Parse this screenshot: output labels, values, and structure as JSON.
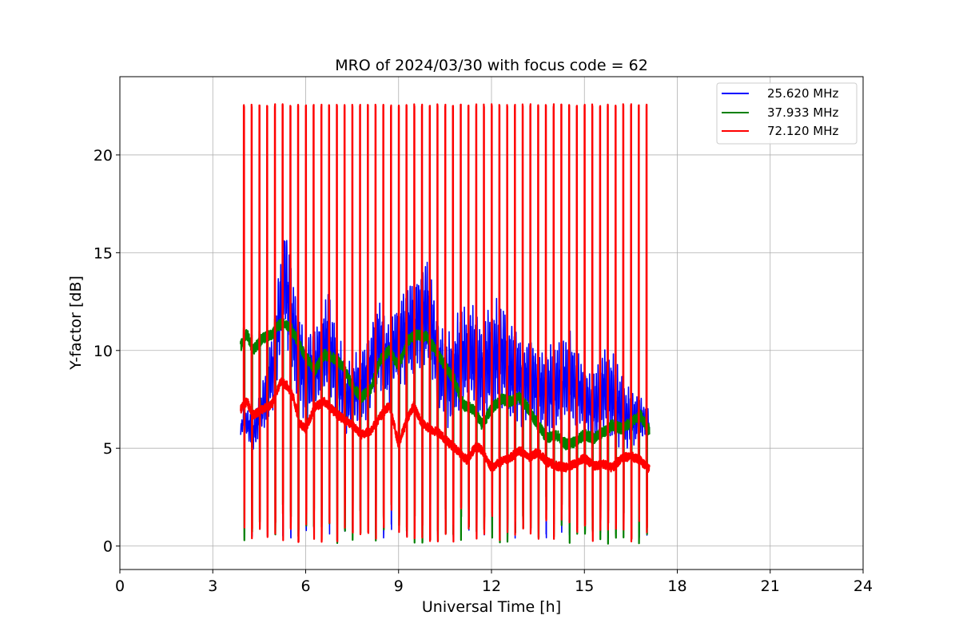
{
  "chart_data": {
    "type": "line",
    "title": "MRO of 2024/03/30 with focus code = 62",
    "xlabel": "Universal Time [h]",
    "ylabel": "Y-factor [dB]",
    "xlim": [
      0,
      24
    ],
    "ylim": [
      -1.2,
      24
    ],
    "xticks": [
      0,
      3,
      6,
      9,
      12,
      15,
      18,
      21,
      24
    ],
    "yticks": [
      0,
      5,
      10,
      15,
      20
    ],
    "grid": true,
    "legend_position": "top-right",
    "calibration_pulses": {
      "start": 4.0,
      "end": 17.0,
      "spacing_h": 0.25,
      "red_peak": 22.6,
      "blue_peak_range": [
        13.0,
        18.3
      ],
      "green_trough": 0.1
    },
    "series": [
      {
        "name": "25.620 MHz",
        "color": "#0000ff",
        "x": [
          3.9,
          4.0,
          4.3,
          4.6,
          5.0,
          5.3,
          5.6,
          6.0,
          6.3,
          6.7,
          7.0,
          7.3,
          7.6,
          8.0,
          8.3,
          8.6,
          9.0,
          9.3,
          9.6,
          10.0,
          10.3,
          10.6,
          11.0,
          11.3,
          11.6,
          12.0,
          12.3,
          12.6,
          13.0,
          13.3,
          13.6,
          14.0,
          14.3,
          14.6,
          15.0,
          15.3,
          15.6,
          16.0,
          16.3,
          16.6,
          17.0,
          17.1
        ],
        "values": [
          5.9,
          6.5,
          5.8,
          7.0,
          9.5,
          14.0,
          11.0,
          8.5,
          9.0,
          10.5,
          9.0,
          7.5,
          8.0,
          8.5,
          10.5,
          9.5,
          10.5,
          11.0,
          11.5,
          12.0,
          9.0,
          8.5,
          9.5,
          10.0,
          9.0,
          9.5,
          10.0,
          9.0,
          8.5,
          8.5,
          8.0,
          8.0,
          8.5,
          8.5,
          7.5,
          7.0,
          8.0,
          7.5,
          6.5,
          6.5,
          6.5,
          6.2
        ],
        "amplitude": [
          0.3,
          0.8,
          1.0,
          1.5,
          2.5,
          3.0,
          3.0,
          2.5,
          2.5,
          3.0,
          2.5,
          2.0,
          2.0,
          2.5,
          2.5,
          2.5,
          2.5,
          3.0,
          3.0,
          3.0,
          2.5,
          2.5,
          3.0,
          3.0,
          3.0,
          3.0,
          3.0,
          3.0,
          2.5,
          2.5,
          2.5,
          2.5,
          2.5,
          2.5,
          2.0,
          2.0,
          2.5,
          2.5,
          2.0,
          1.5,
          1.0,
          0.5
        ]
      },
      {
        "name": "37.933 MHz",
        "color": "#008000",
        "x": [
          3.9,
          4.1,
          4.3,
          4.6,
          4.9,
          5.2,
          5.5,
          5.8,
          6.0,
          6.3,
          6.6,
          6.9,
          7.2,
          7.5,
          7.8,
          8.1,
          8.4,
          8.7,
          9.0,
          9.3,
          9.6,
          9.9,
          10.2,
          10.5,
          10.8,
          11.1,
          11.4,
          11.7,
          12.0,
          12.3,
          12.6,
          12.9,
          13.2,
          13.5,
          13.8,
          14.1,
          14.4,
          14.7,
          15.0,
          15.3,
          15.6,
          15.9,
          16.2,
          16.5,
          16.8,
          17.1
        ],
        "values": [
          10.2,
          10.9,
          10.0,
          10.6,
          10.8,
          11.4,
          11.2,
          10.3,
          9.7,
          9.0,
          9.8,
          9.6,
          9.2,
          8.2,
          7.6,
          8.0,
          9.5,
          10.0,
          9.2,
          10.5,
          10.8,
          10.7,
          10.0,
          9.2,
          8.5,
          7.2,
          7.0,
          6.2,
          7.0,
          7.5,
          7.4,
          7.6,
          7.0,
          6.2,
          5.5,
          5.7,
          5.2,
          5.3,
          5.7,
          5.5,
          5.8,
          6.2,
          6.0,
          6.3,
          6.7,
          5.9
        ]
      },
      {
        "name": "72.120 MHz",
        "color": "#ff0000",
        "x": [
          3.9,
          4.1,
          4.3,
          4.6,
          4.9,
          5.2,
          5.4,
          5.6,
          5.8,
          6.0,
          6.3,
          6.6,
          6.9,
          7.2,
          7.5,
          7.8,
          8.1,
          8.4,
          8.7,
          9.0,
          9.3,
          9.5,
          9.7,
          10.0,
          10.3,
          10.6,
          10.9,
          11.2,
          11.5,
          11.7,
          12.0,
          12.3,
          12.6,
          12.9,
          13.2,
          13.5,
          13.8,
          14.1,
          14.4,
          14.7,
          15.0,
          15.3,
          15.6,
          15.9,
          16.2,
          16.5,
          16.8,
          17.1
        ],
        "values": [
          7.0,
          7.4,
          6.7,
          7.0,
          7.2,
          8.4,
          8.2,
          7.6,
          6.3,
          6.0,
          7.1,
          7.4,
          6.9,
          6.5,
          6.2,
          5.7,
          5.9,
          6.6,
          7.2,
          5.2,
          6.6,
          7.2,
          6.4,
          6.0,
          5.8,
          5.3,
          4.9,
          4.4,
          5.1,
          4.9,
          4.0,
          4.3,
          4.5,
          4.9,
          4.5,
          4.8,
          4.3,
          4.1,
          4.0,
          4.2,
          4.5,
          4.1,
          4.2,
          4.0,
          4.5,
          4.6,
          4.4,
          3.9
        ]
      }
    ]
  }
}
